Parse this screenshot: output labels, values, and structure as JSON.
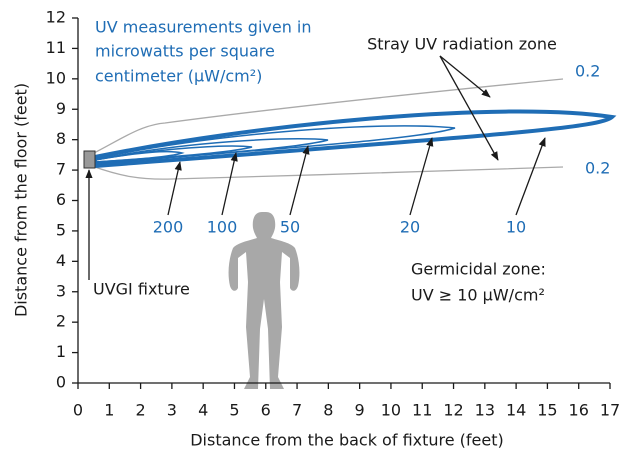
{
  "chart_data": {
    "type": "contour",
    "xlabel": "Distance from the back of fixture (feet)",
    "ylabel": "Distance from the floor (feet)",
    "xlim": [
      0,
      17
    ],
    "ylim": [
      0,
      12
    ],
    "xticks": [
      0,
      1,
      2,
      3,
      4,
      5,
      6,
      7,
      8,
      9,
      10,
      11,
      12,
      13,
      14,
      15,
      16,
      17
    ],
    "yticks": [
      0,
      1,
      2,
      3,
      4,
      5,
      6,
      7,
      8,
      9,
      10,
      11,
      12
    ],
    "levels": [
      200,
      100,
      50,
      20,
      10,
      0.2
    ],
    "colors": [
      "#1f6db5",
      "#1f6db5",
      "#1f6db5",
      "#1f6db5",
      "#1f6db5",
      "#aaaaaa"
    ],
    "annotations": {
      "units": [
        "UV measurements given in",
        "microwatts per square",
        "centimeter (μW/cm²)"
      ],
      "stray": "Stray UV radiation zone",
      "germicidal": [
        "Germicidal zone:",
        "UV ≥ 10 μW/cm²"
      ],
      "fixture": "UVGI fixture"
    }
  }
}
